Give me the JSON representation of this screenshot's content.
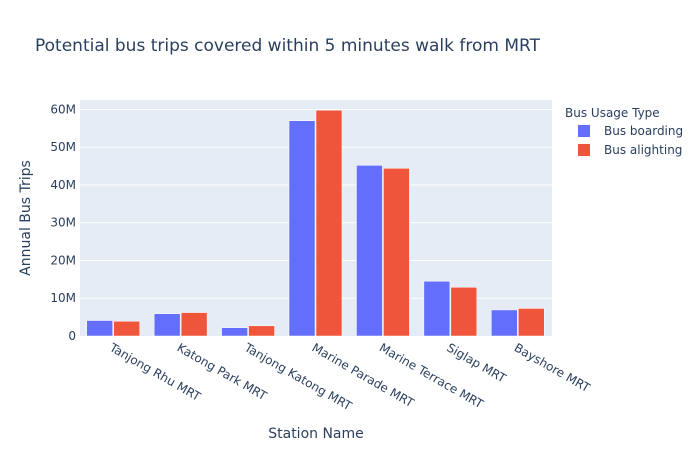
{
  "chart_data": {
    "type": "bar",
    "title": "Potential bus trips covered within 5 minutes walk from MRT",
    "xlabel": "Station Name",
    "ylabel": "Annual Bus Trips",
    "categories": [
      "Tanjong Rhu MRT",
      "Katong Park MRT",
      "Tanjong Katong MRT",
      "Marine Parade MRT",
      "Marine Terrace MRT",
      "Siglap MRT",
      "Bayshore MRT"
    ],
    "series": [
      {
        "name": "Bus boarding",
        "color": "#636efa",
        "values": [
          4100000,
          5900000,
          2200000,
          57000000,
          45200000,
          14500000,
          6900000
        ]
      },
      {
        "name": "Bus alighting",
        "color": "#ef553b",
        "values": [
          3900000,
          6200000,
          2700000,
          59800000,
          44400000,
          12900000,
          7300000
        ]
      }
    ],
    "ylim": [
      0,
      62500000
    ],
    "yticks": [
      0,
      10000000,
      20000000,
      30000000,
      40000000,
      50000000,
      60000000
    ],
    "ytick_labels": [
      "0",
      "10M",
      "20M",
      "30M",
      "40M",
      "50M",
      "60M"
    ],
    "legend_title": "Bus Usage Type",
    "legend_position": "top-right",
    "grid": true,
    "plot_bg": "#e5ecf6"
  }
}
